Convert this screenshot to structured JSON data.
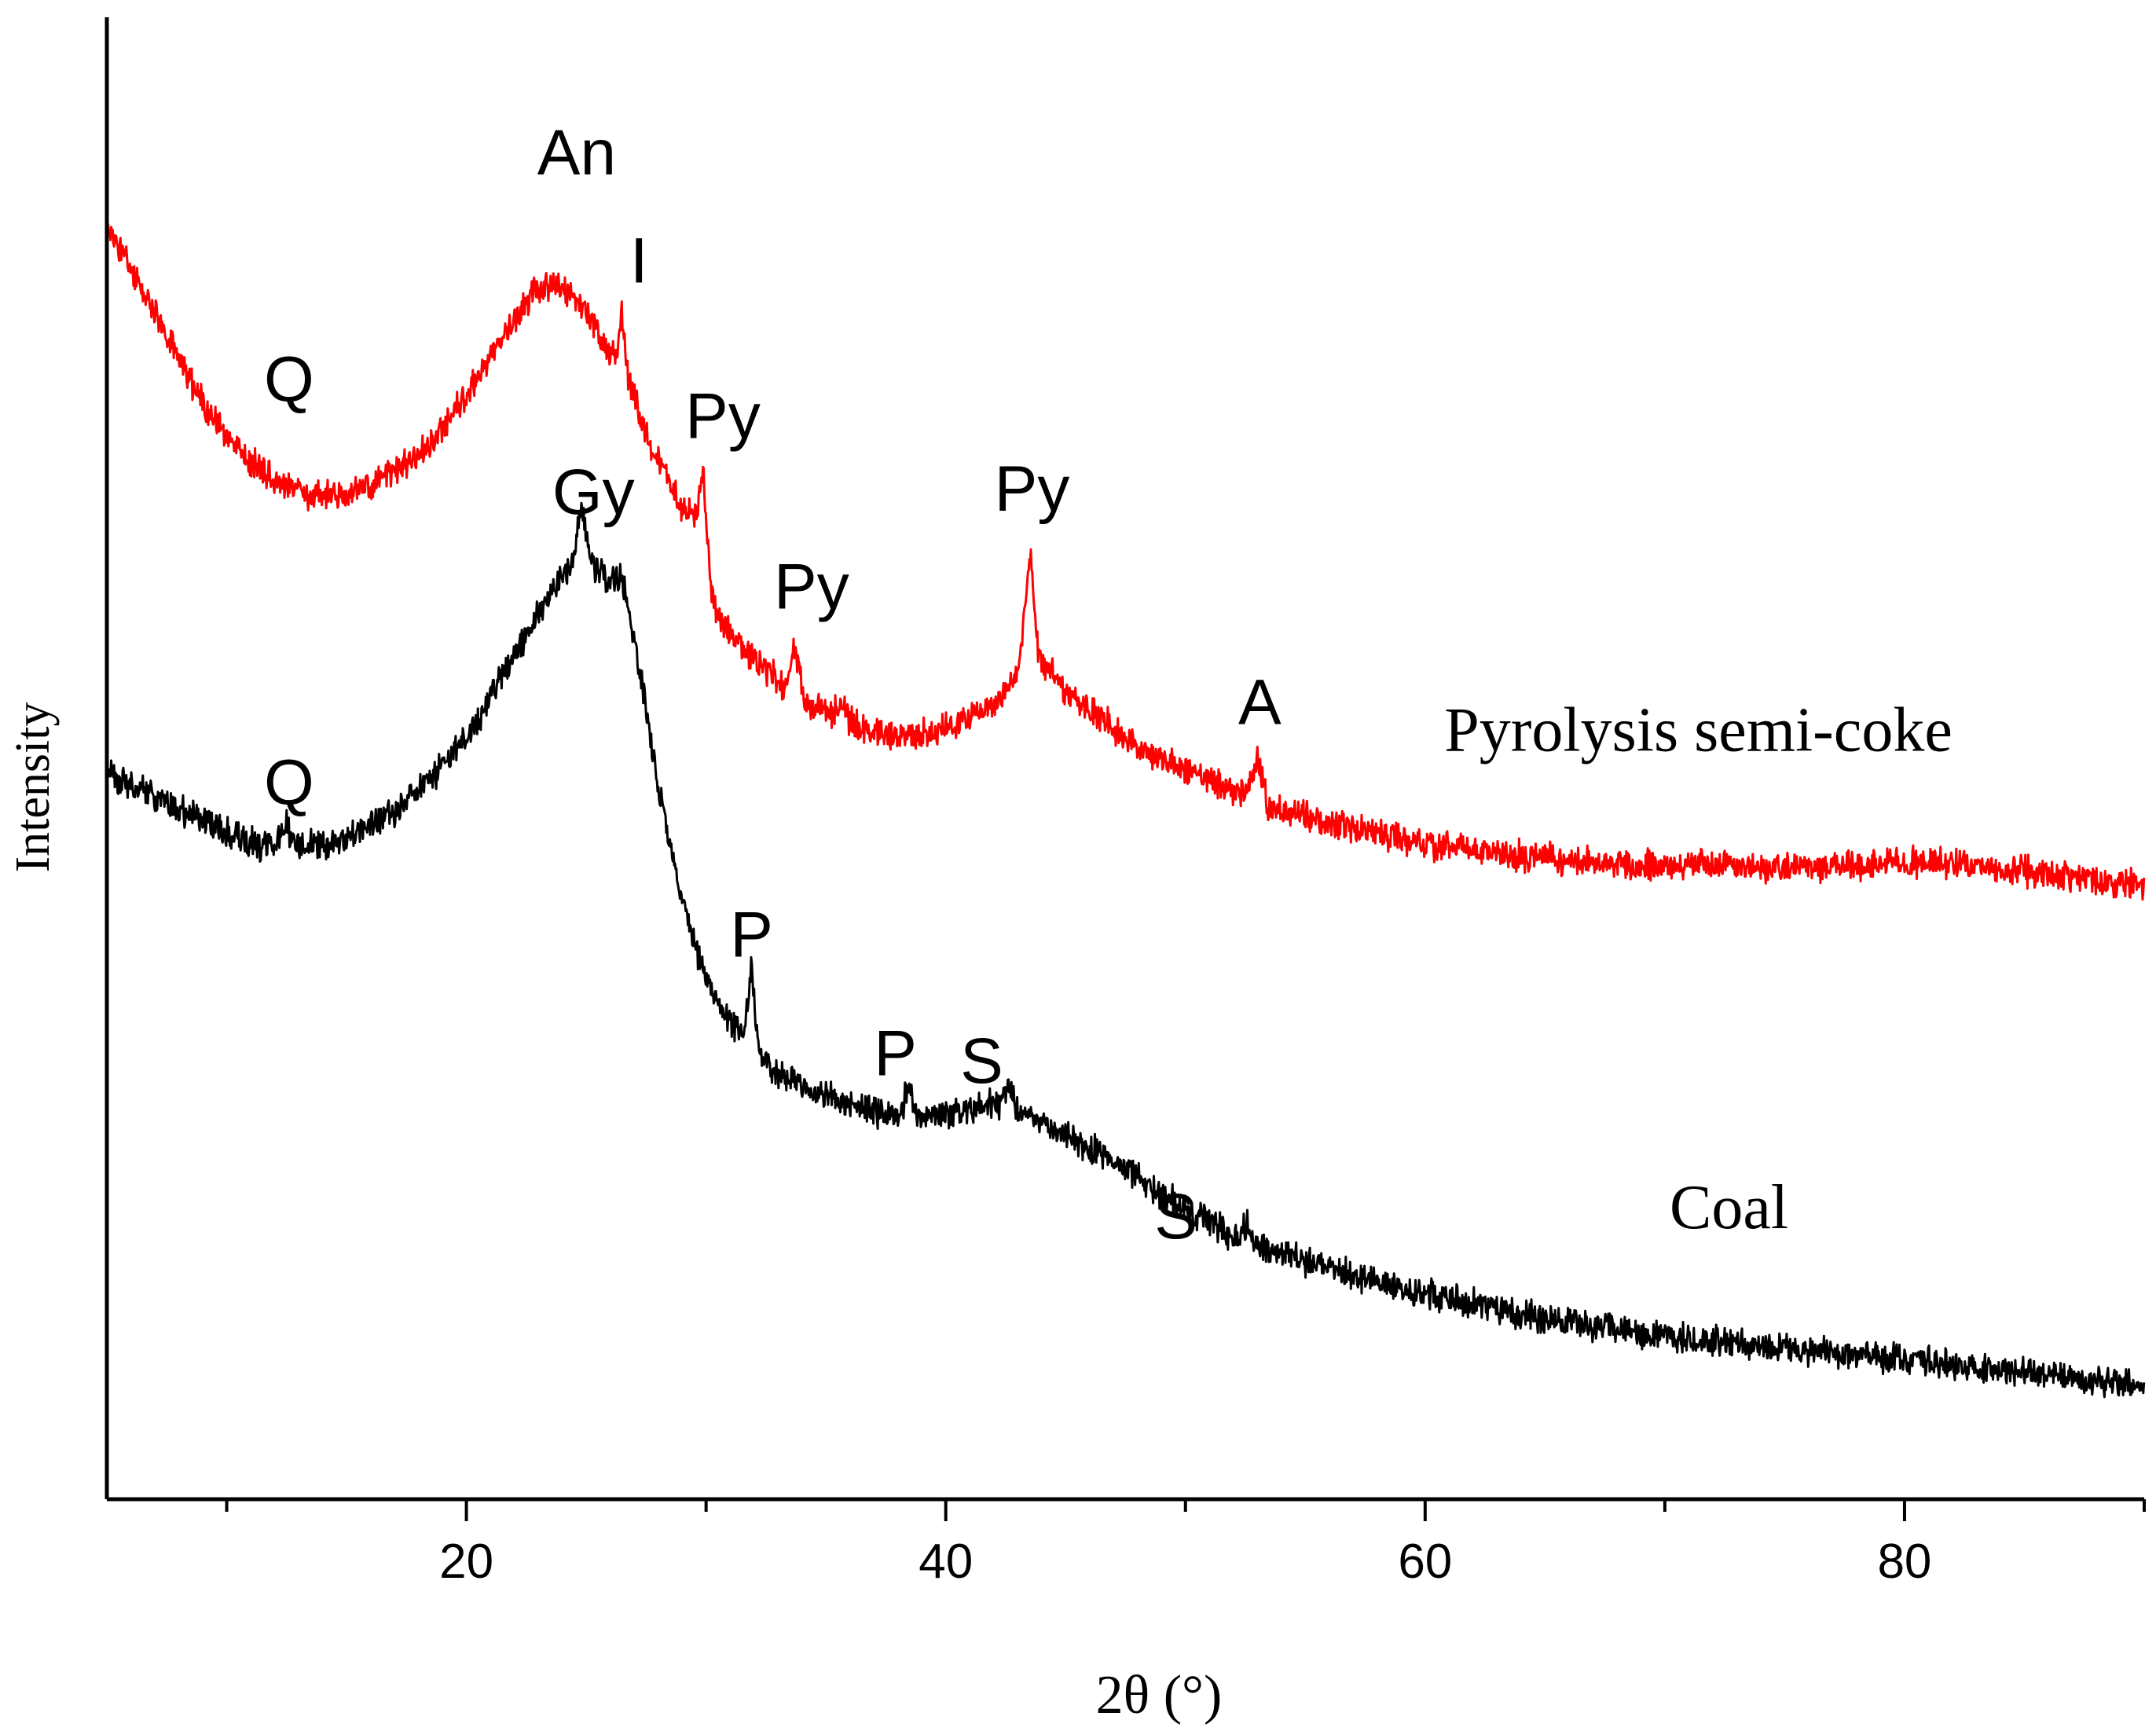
{
  "chart_data": {
    "type": "line",
    "title": "",
    "xlabel": "2θ (°)",
    "ylabel": "Intensity",
    "xlim": [
      5,
      90
    ],
    "ylim": [
      0,
      1.0
    ],
    "x_ticks_major": [
      20,
      40,
      60,
      80
    ],
    "x_ticks_minor": [
      10,
      30,
      50,
      70,
      90
    ],
    "y_ticks": [],
    "grid": false,
    "series": [
      {
        "name": "Pyrolysis semi-coke",
        "color": "#ff0000",
        "label_text": "Pyrolysis semi-coke",
        "label_x": 60.8,
        "label_y": 0.505,
        "points": [
          [
            5.0,
            0.86
          ],
          [
            6.0,
            0.83
          ],
          [
            7.0,
            0.8
          ],
          [
            8.0,
            0.77
          ],
          [
            9.0,
            0.74
          ],
          [
            10.0,
            0.718
          ],
          [
            11.0,
            0.7
          ],
          [
            12.0,
            0.688
          ],
          [
            13.0,
            0.68
          ],
          [
            14.0,
            0.677
          ],
          [
            15.0,
            0.678
          ],
          [
            16.0,
            0.684
          ],
          [
            17.0,
            0.693
          ],
          [
            18.0,
            0.705
          ],
          [
            19.0,
            0.722
          ],
          [
            20.0,
            0.745
          ],
          [
            21.0,
            0.772
          ],
          [
            22.0,
            0.796
          ],
          [
            22.7,
            0.812
          ],
          [
            23.5,
            0.818
          ],
          [
            24.2,
            0.814
          ],
          [
            25.0,
            0.8
          ],
          [
            25.6,
            0.783
          ],
          [
            26.2,
            0.77
          ],
          [
            26.5,
            0.8
          ],
          [
            26.8,
            0.752
          ],
          [
            27.5,
            0.72
          ],
          [
            28.2,
            0.695
          ],
          [
            29.0,
            0.67
          ],
          [
            29.5,
            0.66
          ],
          [
            29.9,
            0.69
          ],
          [
            30.2,
            0.61
          ],
          [
            30.8,
            0.588
          ],
          [
            31.5,
            0.575
          ],
          [
            32.5,
            0.56
          ],
          [
            33.3,
            0.548
          ],
          [
            33.7,
            0.575
          ],
          [
            34.1,
            0.54
          ],
          [
            35.0,
            0.53
          ],
          [
            35.6,
            0.535
          ],
          [
            36.2,
            0.522
          ],
          [
            37.5,
            0.515
          ],
          [
            38.5,
            0.514
          ],
          [
            39.5,
            0.518
          ],
          [
            40.5,
            0.524
          ],
          [
            41.5,
            0.532
          ],
          [
            42.5,
            0.546
          ],
          [
            43.1,
            0.565
          ],
          [
            43.5,
            0.64
          ],
          [
            43.9,
            0.565
          ],
          [
            44.5,
            0.555
          ],
          [
            45.5,
            0.538
          ],
          [
            47.0,
            0.52
          ],
          [
            48.5,
            0.505
          ],
          [
            50.0,
            0.492
          ],
          [
            51.5,
            0.482
          ],
          [
            52.5,
            0.476
          ],
          [
            53.0,
            0.5
          ],
          [
            53.4,
            0.47
          ],
          [
            55.0,
            0.46
          ],
          [
            57.0,
            0.452
          ],
          [
            60.0,
            0.442
          ],
          [
            63.0,
            0.436
          ],
          [
            66.0,
            0.431
          ],
          [
            69.0,
            0.428
          ],
          [
            71.0,
            0.428
          ],
          [
            74.0,
            0.426
          ],
          [
            77.0,
            0.427
          ],
          [
            80.0,
            0.43
          ],
          [
            83.0,
            0.427
          ],
          [
            86.0,
            0.422
          ],
          [
            88.0,
            0.418
          ],
          [
            90.0,
            0.414
          ]
        ]
      },
      {
        "name": "Coal",
        "color": "#000000",
        "label_text": "Coal",
        "label_x": 70.2,
        "label_y": 0.183,
        "points": [
          [
            5.0,
            0.49
          ],
          [
            6.0,
            0.482
          ],
          [
            7.0,
            0.474
          ],
          [
            8.0,
            0.466
          ],
          [
            9.0,
            0.458
          ],
          [
            10.0,
            0.449
          ],
          [
            11.0,
            0.443
          ],
          [
            12.0,
            0.44
          ],
          [
            12.5,
            0.455
          ],
          [
            12.8,
            0.44
          ],
          [
            14.0,
            0.441
          ],
          [
            15.0,
            0.446
          ],
          [
            16.0,
            0.455
          ],
          [
            17.0,
            0.465
          ],
          [
            18.0,
            0.478
          ],
          [
            19.0,
            0.495
          ],
          [
            20.0,
            0.515
          ],
          [
            21.0,
            0.54
          ],
          [
            22.0,
            0.57
          ],
          [
            23.0,
            0.598
          ],
          [
            24.0,
            0.622
          ],
          [
            24.5,
            0.635
          ],
          [
            24.8,
            0.67
          ],
          [
            25.2,
            0.63
          ],
          [
            26.0,
            0.62
          ],
          [
            26.5,
            0.622
          ],
          [
            27.0,
            0.58
          ],
          [
            27.5,
            0.53
          ],
          [
            28.0,
            0.48
          ],
          [
            28.5,
            0.44
          ],
          [
            29.0,
            0.405
          ],
          [
            29.5,
            0.375
          ],
          [
            30.0,
            0.352
          ],
          [
            30.5,
            0.335
          ],
          [
            31.2,
            0.318
          ],
          [
            31.6,
            0.314
          ],
          [
            31.9,
            0.358
          ],
          [
            32.2,
            0.3
          ],
          [
            33.0,
            0.287
          ],
          [
            34.5,
            0.275
          ],
          [
            36.0,
            0.266
          ],
          [
            37.5,
            0.26
          ],
          [
            38.1,
            0.258
          ],
          [
            38.4,
            0.28
          ],
          [
            38.7,
            0.26
          ],
          [
            40.0,
            0.26
          ],
          [
            41.0,
            0.262
          ],
          [
            42.3,
            0.268
          ],
          [
            42.6,
            0.276
          ],
          [
            43.0,
            0.262
          ],
          [
            44.5,
            0.25
          ],
          [
            46.0,
            0.238
          ],
          [
            47.5,
            0.222
          ],
          [
            49.0,
            0.206
          ],
          [
            50.5,
            0.192
          ],
          [
            52.0,
            0.178
          ],
          [
            52.6,
            0.186
          ],
          [
            53.0,
            0.17
          ],
          [
            55.0,
            0.16
          ],
          [
            58.0,
            0.146
          ],
          [
            61.0,
            0.135
          ],
          [
            64.0,
            0.125
          ],
          [
            67.0,
            0.117
          ],
          [
            70.0,
            0.11
          ],
          [
            73.0,
            0.105
          ],
          [
            76.0,
            0.1
          ],
          [
            79.0,
            0.096
          ],
          [
            82.0,
            0.091
          ],
          [
            85.0,
            0.086
          ],
          [
            88.0,
            0.08
          ],
          [
            90.0,
            0.076
          ]
        ]
      }
    ],
    "annotations": [
      {
        "text": "Q",
        "x": 12.6,
        "y": 0.741,
        "series": "Pyrolysis semi-coke"
      },
      {
        "text": "An",
        "x": 24.6,
        "y": 0.894,
        "series": "Pyrolysis semi-coke"
      },
      {
        "text": "I",
        "x": 27.2,
        "y": 0.821,
        "series": "Pyrolysis semi-coke"
      },
      {
        "text": "Py",
        "x": 30.7,
        "y": 0.716,
        "series": "Pyrolysis semi-coke"
      },
      {
        "text": "Py",
        "x": 34.4,
        "y": 0.601,
        "series": "Pyrolysis semi-coke"
      },
      {
        "text": "Py",
        "x": 43.6,
        "y": 0.667,
        "series": "Pyrolysis semi-coke"
      },
      {
        "text": "A",
        "x": 53.1,
        "y": 0.523,
        "series": "Pyrolysis semi-coke"
      },
      {
        "text": "Q",
        "x": 12.6,
        "y": 0.469,
        "series": "Coal"
      },
      {
        "text": "Gy",
        "x": 25.3,
        "y": 0.665,
        "series": "Coal"
      },
      {
        "text": "P",
        "x": 31.9,
        "y": 0.366,
        "series": "Coal"
      },
      {
        "text": "P",
        "x": 37.9,
        "y": 0.286,
        "series": "Coal"
      },
      {
        "text": "S",
        "x": 41.5,
        "y": 0.281,
        "series": "Coal"
      },
      {
        "text": "S",
        "x": 49.6,
        "y": 0.176,
        "series": "Coal"
      }
    ]
  }
}
